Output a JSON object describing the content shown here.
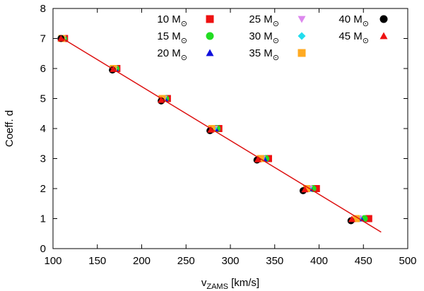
{
  "chart_data": {
    "type": "scatter",
    "title": "",
    "xlabel": "v",
    "xlabel_sub": "ZAMS",
    "xlabel_unit": " [km/s]",
    "ylabel": "Coeff. d",
    "xlim": [
      100,
      500
    ],
    "ylim": [
      0,
      8
    ],
    "xticks": [
      100,
      150,
      200,
      250,
      300,
      350,
      400,
      450,
      500
    ],
    "yticks": [
      0,
      1,
      2,
      3,
      4,
      5,
      6,
      7,
      8
    ],
    "legend_position": "top-right",
    "mass_unit": "M",
    "mass_unit_sub": "⊙",
    "series": [
      {
        "name": "10",
        "marker": "square",
        "color": "#ee1111",
        "x": [
          113,
          172,
          229,
          287,
          343,
          397,
          456
        ],
        "y": [
          7,
          6,
          5,
          4,
          3,
          2,
          1
        ]
      },
      {
        "name": "15",
        "marker": "circle",
        "color": "#22dd22",
        "x": [
          112,
          171,
          227,
          285,
          340,
          393,
          451
        ],
        "y": [
          7,
          6,
          5,
          4,
          3,
          2,
          1
        ]
      },
      {
        "name": "20",
        "marker": "triangle-up",
        "color": "#1111dd",
        "x": [
          111,
          170,
          226,
          283,
          338,
          390,
          447
        ],
        "y": [
          7,
          6,
          5,
          4,
          3,
          2,
          1
        ]
      },
      {
        "name": "25",
        "marker": "triangle-down",
        "color": "#dd88ee",
        "x": [
          111,
          169,
          225,
          282,
          336,
          389,
          445
        ],
        "y": [
          7,
          6,
          5,
          4,
          3,
          2,
          1
        ]
      },
      {
        "name": "30",
        "marker": "diamond",
        "color": "#22ddee",
        "x": [
          111,
          169,
          224,
          281,
          335,
          388,
          444
        ],
        "y": [
          7,
          6,
          5,
          4,
          3,
          2,
          1
        ]
      },
      {
        "name": "35",
        "marker": "square",
        "color": "#ffaa22",
        "x": [
          110,
          168,
          223,
          279,
          334,
          386,
          442
        ],
        "y": [
          7,
          6,
          5,
          4,
          3,
          2,
          1
        ]
      },
      {
        "name": "40",
        "marker": "circle",
        "color": "#000000",
        "x": [
          109,
          167,
          222,
          277,
          330,
          382,
          436
        ],
        "y": [
          7,
          5.95,
          4.92,
          3.93,
          2.95,
          1.93,
          0.93
        ]
      },
      {
        "name": "45",
        "marker": "triangle-up",
        "color": "#ee1111",
        "x": [
          109,
          168,
          222,
          278,
          331,
          384,
          437
        ],
        "y": [
          7,
          5.98,
          4.95,
          3.96,
          2.97,
          1.97,
          0.98
        ]
      }
    ],
    "fit_line": {
      "color": "#dd1111",
      "x": [
        108,
        470
      ],
      "y": [
        7.05,
        0.55
      ]
    }
  }
}
